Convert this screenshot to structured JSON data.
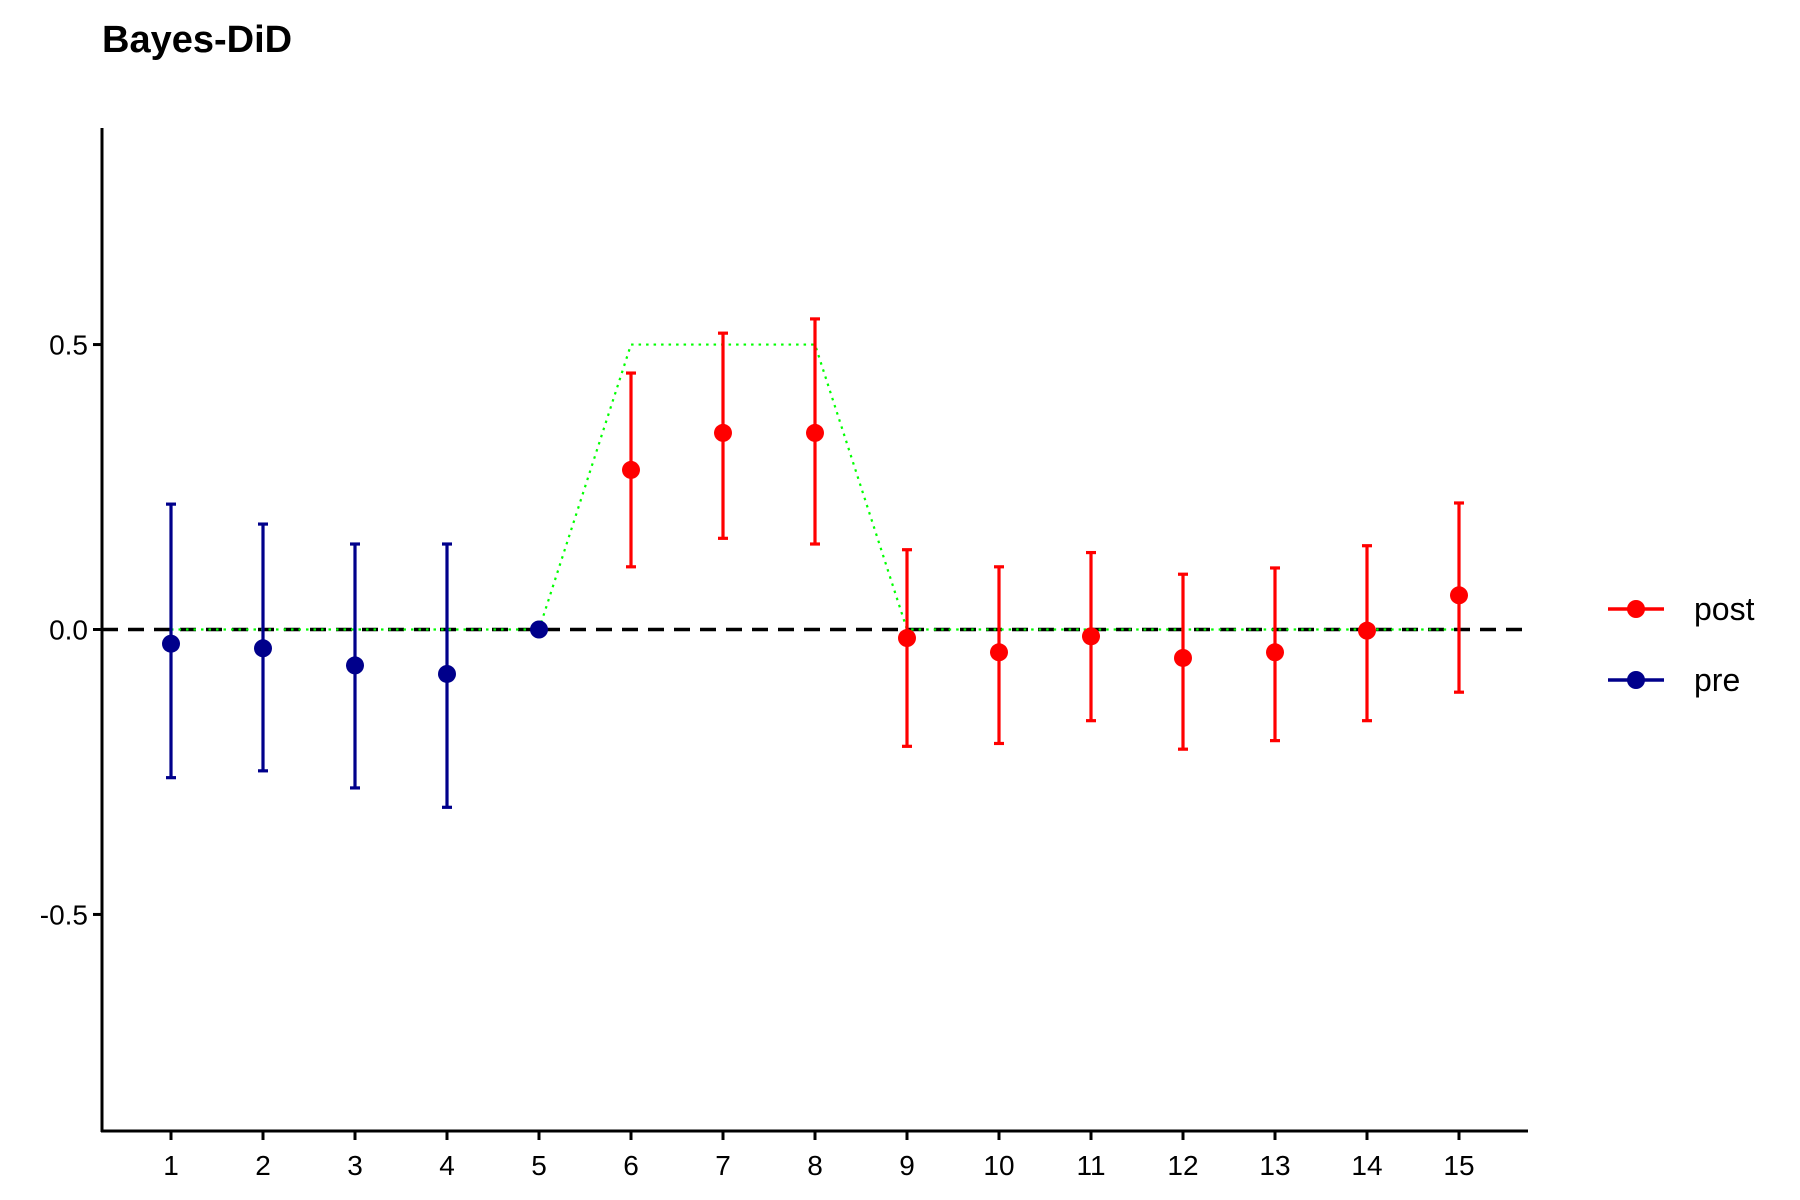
{
  "chart_data": {
    "type": "scatter",
    "title": "Bayes-DiD",
    "xlabel": "",
    "ylabel": "",
    "x": [
      1,
      2,
      3,
      4,
      5,
      6,
      7,
      8,
      9,
      10,
      11,
      12,
      13,
      14,
      15
    ],
    "xlim": [
      0.25,
      15.75
    ],
    "ylim": [
      -0.88,
      0.88
    ],
    "y_ticks": [
      "0.5",
      "0.0",
      "-0.5"
    ],
    "x_ticks": [
      "1",
      "2",
      "3",
      "4",
      "5",
      "6",
      "7",
      "8",
      "9",
      "10",
      "11",
      "12",
      "13",
      "14",
      "15"
    ],
    "series": [
      {
        "name": "post",
        "color": "#ff0000",
        "points": [
          {
            "x": 6,
            "y": 0.28,
            "lower": 0.11,
            "upper": 0.45
          },
          {
            "x": 7,
            "y": 0.345,
            "lower": 0.16,
            "upper": 0.52
          },
          {
            "x": 8,
            "y": 0.345,
            "lower": 0.15,
            "upper": 0.545
          },
          {
            "x": 9,
            "y": -0.015,
            "lower": -0.205,
            "upper": 0.14
          },
          {
            "x": 10,
            "y": -0.04,
            "lower": -0.2,
            "upper": 0.11
          },
          {
            "x": 11,
            "y": -0.012,
            "lower": -0.16,
            "upper": 0.135
          },
          {
            "x": 12,
            "y": -0.05,
            "lower": -0.21,
            "upper": 0.097
          },
          {
            "x": 13,
            "y": -0.04,
            "lower": -0.195,
            "upper": 0.108
          },
          {
            "x": 14,
            "y": -0.002,
            "lower": -0.16,
            "upper": 0.147
          },
          {
            "x": 15,
            "y": 0.06,
            "lower": -0.11,
            "upper": 0.222
          }
        ]
      },
      {
        "name": "pre",
        "color": "#00008b",
        "points": [
          {
            "x": 1,
            "y": -0.025,
            "lower": -0.26,
            "upper": 0.22
          },
          {
            "x": 2,
            "y": -0.033,
            "lower": -0.248,
            "upper": 0.185
          },
          {
            "x": 3,
            "y": -0.063,
            "lower": -0.278,
            "upper": 0.15
          },
          {
            "x": 4,
            "y": -0.078,
            "lower": -0.312,
            "upper": 0.15
          },
          {
            "x": 5,
            "y": 0.0,
            "lower": 0.0,
            "upper": 0.0
          }
        ]
      }
    ],
    "reference_line": {
      "y": 0,
      "style": "dashed",
      "color": "#000000"
    },
    "true_effect": {
      "color": "#00ff00",
      "style": "dotted",
      "x": [
        1,
        2,
        3,
        4,
        5,
        6,
        7,
        8,
        9,
        10,
        11,
        12,
        13,
        14,
        15
      ],
      "y": [
        0,
        0,
        0,
        0,
        0,
        0.5,
        0.5,
        0.5,
        0,
        0,
        0,
        0,
        0,
        0,
        0
      ]
    },
    "legend": {
      "position": "right",
      "entries": [
        "post",
        "pre"
      ]
    },
    "grid": false
  }
}
